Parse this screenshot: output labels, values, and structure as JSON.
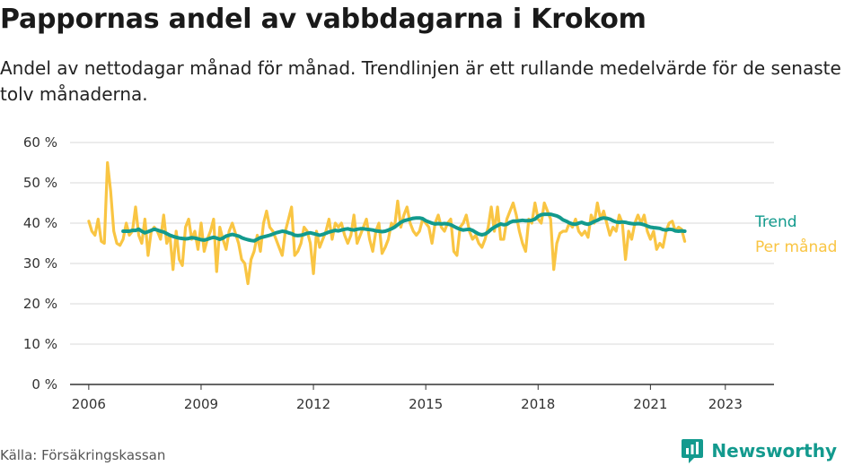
{
  "header": {
    "title": "Pappornas andel av vabbdagarna i Krokom",
    "subtitle": "Andel av nettodagar månad för månad. Trendlinjen är ett rullande medelvärde för de senaste tolv månaderna."
  },
  "footer": {
    "source": "Källa: Försäkringskassan",
    "brand": "Newsworthy",
    "brand_icon": "newsworthy-logo-icon"
  },
  "colors": {
    "monthly": "#f9c543",
    "trend": "#129a8d",
    "grid": "#d9d9d9",
    "axis": "#333333"
  },
  "chart_data": {
    "type": "line",
    "title": "Pappornas andel av vabbdagarna i Krokom",
    "xlabel": "",
    "ylabel": "",
    "ylim": [
      0,
      60
    ],
    "y_ticks": [
      0,
      10,
      20,
      30,
      40,
      50,
      60
    ],
    "y_tick_labels": [
      "0 %",
      "10 %",
      "20 %",
      "30 %",
      "40 %",
      "50 %",
      "60 %"
    ],
    "xlim": [
      2005.5,
      2024.3
    ],
    "x_ticks": [
      2006,
      2009,
      2012,
      2015,
      2018,
      2021,
      2023
    ],
    "x_tick_labels": [
      "2006",
      "2009",
      "2012",
      "2015",
      "2018",
      "2021",
      "2023"
    ],
    "grid": true,
    "series": [
      {
        "name": "Per månad",
        "start": 2006.0,
        "step_months": 1,
        "values": [
          40.5,
          38,
          37,
          41,
          35.5,
          35,
          55,
          48,
          38,
          35,
          34.5,
          36,
          40,
          37,
          38,
          44,
          37,
          35,
          41,
          32,
          38,
          39,
          38,
          36,
          42,
          35,
          37,
          28.5,
          38,
          31,
          29.5,
          39,
          41,
          36,
          38,
          33.5,
          40,
          33,
          36,
          38,
          41,
          28,
          39,
          36,
          33.5,
          38,
          40,
          37.5,
          35,
          31,
          30,
          25,
          31,
          33,
          37,
          33,
          40,
          43,
          39,
          38,
          36,
          34,
          32,
          38,
          41,
          44,
          32,
          33,
          35,
          39,
          38,
          35,
          27.5,
          38,
          34,
          36,
          38,
          41,
          36,
          40,
          39,
          40,
          37,
          35,
          37,
          42,
          35,
          37,
          39,
          41,
          36,
          33,
          38,
          40,
          32.5,
          34,
          36,
          40,
          39,
          45.5,
          39,
          42,
          44,
          40,
          38,
          37,
          38,
          41,
          40,
          39,
          35,
          40,
          42,
          39,
          38,
          40,
          41,
          33,
          32,
          39,
          40,
          42,
          38,
          36,
          37,
          35,
          34,
          36,
          39,
          44,
          38,
          44,
          36,
          36,
          41,
          43,
          45,
          42,
          38,
          35,
          33,
          41,
          40,
          45,
          41,
          40,
          45,
          43,
          41,
          28.5,
          35,
          37.5,
          38,
          38,
          40,
          39,
          41,
          38,
          37,
          38,
          36.5,
          42,
          40,
          45,
          41,
          43,
          40,
          37,
          39,
          38,
          42,
          40,
          31,
          38,
          36,
          40,
          42,
          40,
          42,
          38,
          36,
          38,
          33.5,
          35,
          34,
          38,
          40,
          40.5,
          38,
          39,
          38.5,
          35.5
        ]
      },
      {
        "name": "Trend",
        "start": 2006.917,
        "step_months": 1,
        "values": [
          38,
          38,
          38,
          38.2,
          38.2,
          38.5,
          38,
          37.6,
          37.9,
          38.2,
          38.5,
          38.3,
          38,
          37.8,
          37.4,
          37,
          36.7,
          36.5,
          36.3,
          36.2,
          36.1,
          36.2,
          36.4,
          36.3,
          36.1,
          35.9,
          35.8,
          36,
          36.3,
          36.5,
          36.3,
          36,
          36.3,
          36.8,
          37,
          37.2,
          37,
          36.8,
          36.4,
          36.1,
          35.9,
          35.7,
          35.6,
          36,
          36.4,
          36.6,
          36.8,
          37,
          37.3,
          37.6,
          37.8,
          38,
          37.9,
          37.6,
          37.4,
          37,
          36.9,
          37,
          37.2,
          37.5,
          37.6,
          37.4,
          37.2,
          37,
          37.2,
          37.5,
          37.8,
          38,
          38.2,
          38.1,
          38.3,
          38.5,
          38.6,
          38.4,
          38.3,
          38.5,
          38.6,
          38.6,
          38.5,
          38.4,
          38.3,
          38.1,
          38,
          37.9,
          38,
          38.3,
          38.6,
          39,
          39.6,
          40.2,
          40.6,
          40.8,
          41,
          41.2,
          41.3,
          41.3,
          41.1,
          40.6,
          40.3,
          40,
          39.8,
          39.9,
          39.8,
          39.9,
          39.8,
          39.6,
          39.2,
          38.8,
          38.5,
          38.3,
          38.4,
          38.5,
          38.2,
          37.7,
          37.3,
          37.1,
          37.3,
          37.8,
          38.5,
          39,
          39.4,
          39.8,
          39.6,
          39.7,
          40.2,
          40.5,
          40.5,
          40.6,
          40.7,
          40.6,
          40.6,
          40.7,
          41,
          41.7,
          42.1,
          42.2,
          42.2,
          42.2,
          42,
          41.8,
          41.4,
          40.8,
          40.5,
          40.1,
          39.8,
          39.7,
          40,
          40.2,
          39.9,
          39.7,
          40,
          40.4,
          40.7,
          41.1,
          41.3,
          41.2,
          41,
          40.6,
          40.3,
          40.2,
          40.3,
          40.2,
          40,
          39.9,
          39.8,
          39.9,
          39.8,
          39.6,
          39.3,
          39,
          38.9,
          38.8,
          38.7,
          38.4,
          38.3,
          38.5,
          38.4,
          38.1,
          38,
          38.1,
          38
        ]
      }
    ]
  }
}
